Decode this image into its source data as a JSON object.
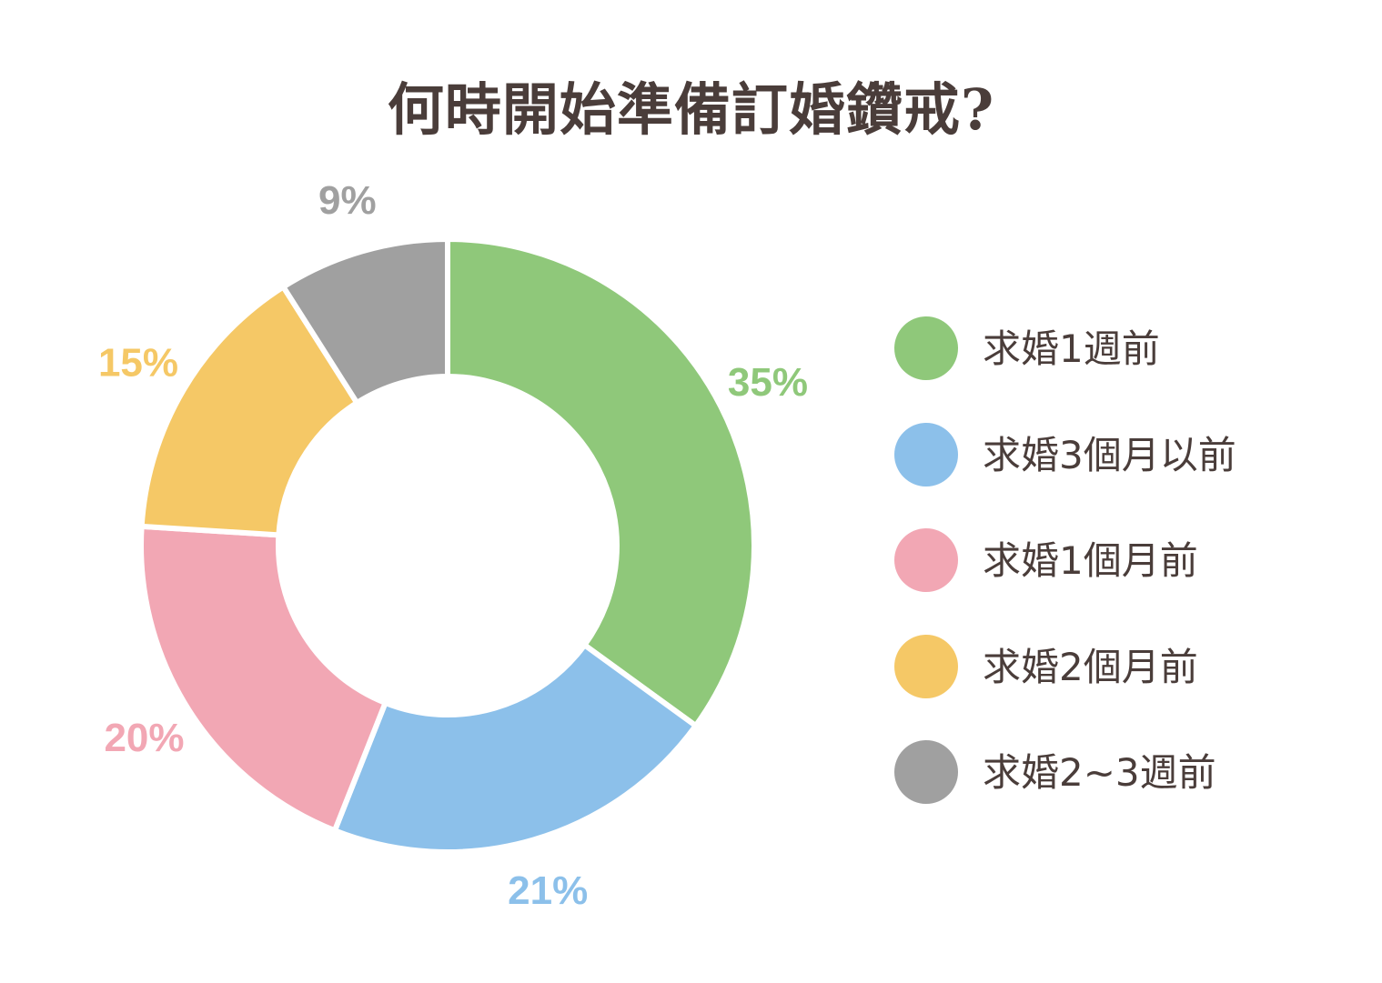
{
  "chart_data": {
    "type": "pie",
    "title": "何時開始準備訂婚鑽戒?",
    "donut": true,
    "categories": [
      "求婚1週前",
      "求婚3個月以前",
      "求婚1個月前",
      "求婚2個月前",
      "求婚2~3週前"
    ],
    "values": [
      35,
      21,
      20,
      15,
      9
    ],
    "value_labels": [
      "35%",
      "21%",
      "20%",
      "15%",
      "9%"
    ],
    "colors": [
      "#8fc87a",
      "#8cc0ea",
      "#f2a7b4",
      "#f5c866",
      "#a0a0a0"
    ],
    "legend_position": "right"
  }
}
